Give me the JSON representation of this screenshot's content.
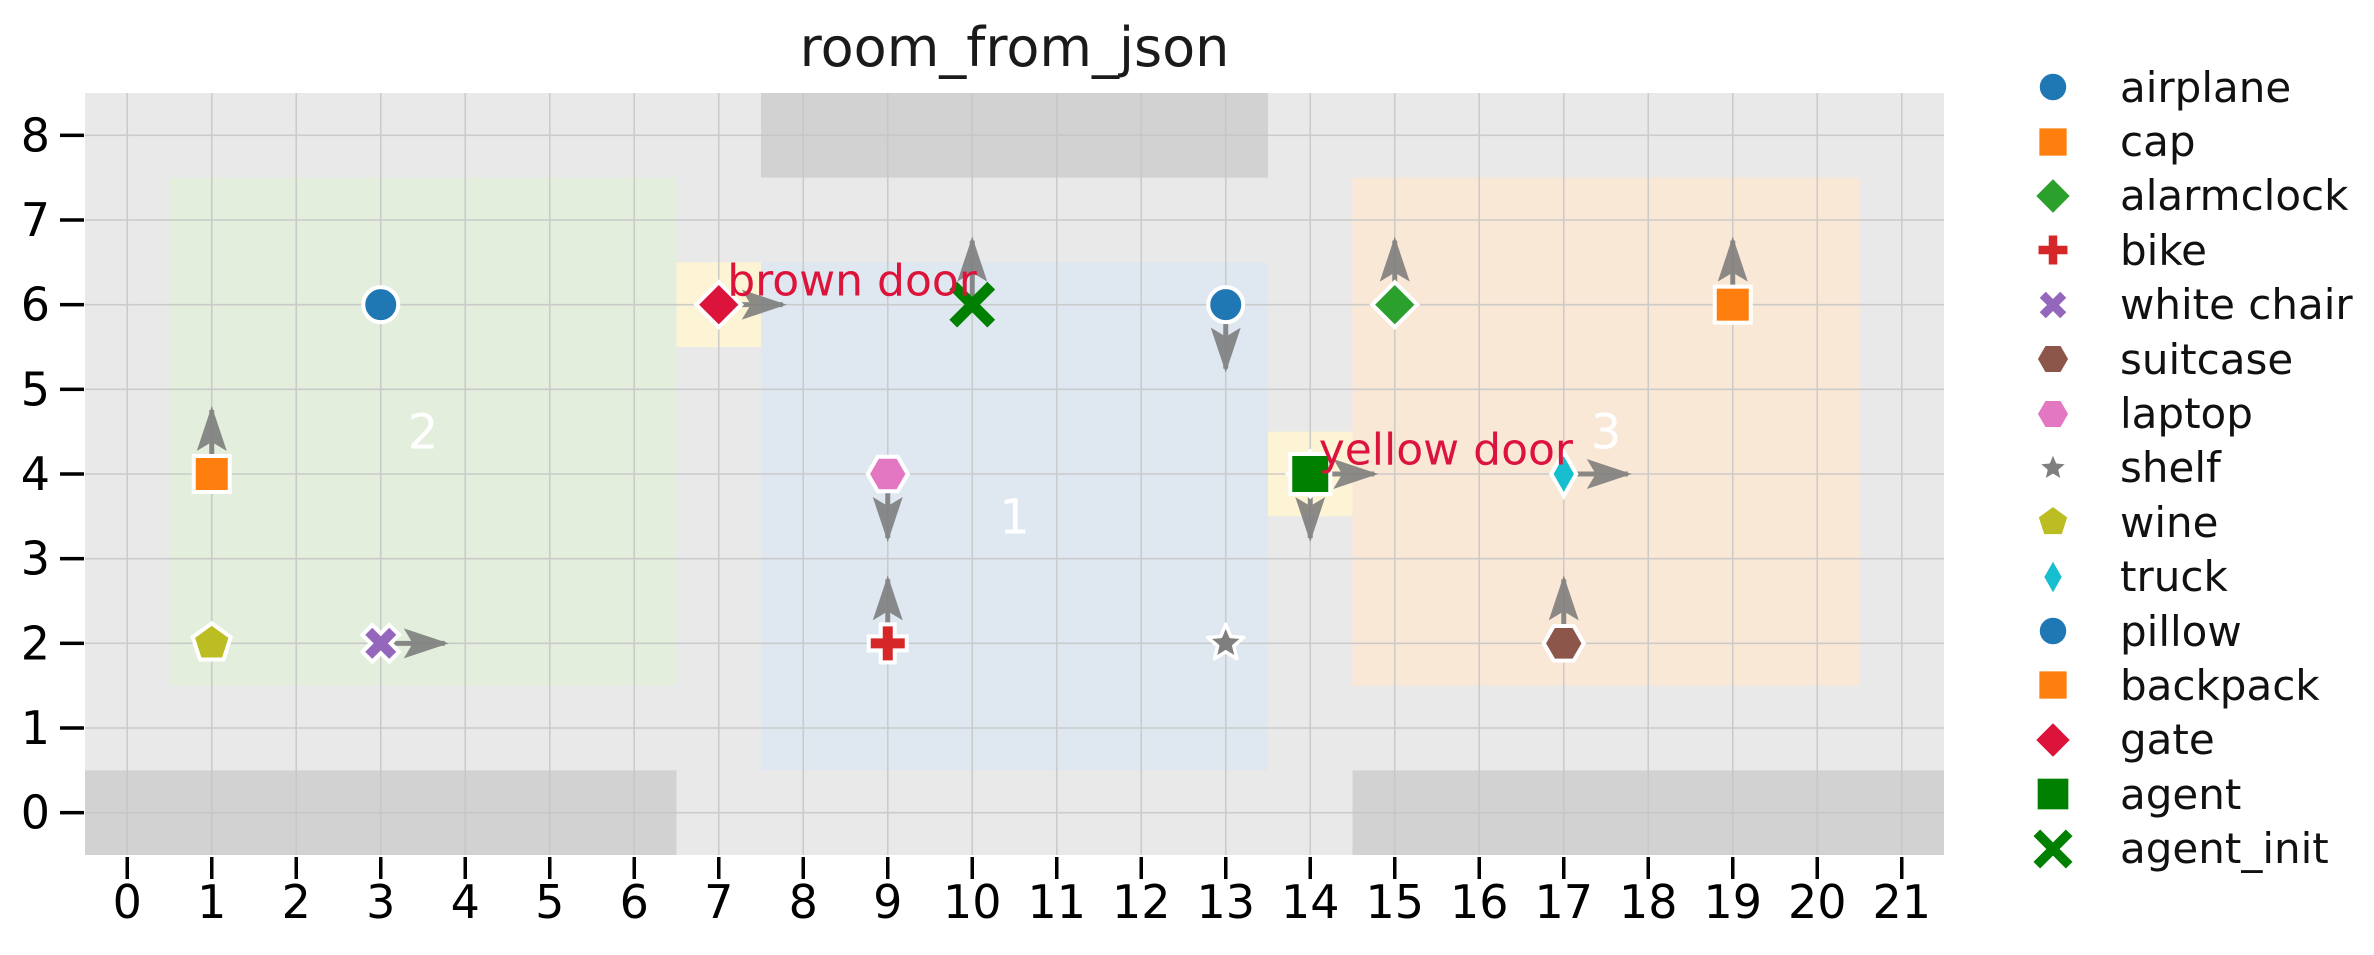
{
  "chart_data": {
    "type": "scatter",
    "title": "room_from_json",
    "xlabel": "",
    "ylabel": "",
    "xlim": [
      -0.5,
      21.5
    ],
    "ylim": [
      -0.5,
      8.5
    ],
    "xticks": [
      0,
      1,
      2,
      3,
      4,
      5,
      6,
      7,
      8,
      9,
      10,
      11,
      12,
      13,
      14,
      15,
      16,
      17,
      18,
      19,
      20,
      21
    ],
    "yticks": [
      0,
      1,
      2,
      3,
      4,
      5,
      6,
      7,
      8
    ],
    "grid": true,
    "legend_position": "right-outside",
    "colors": {
      "plot_bg": "#e9e9e9",
      "grid": "#c6c6c6",
      "wall": "#d2d2d2",
      "door_highlight": "#fdf4d6",
      "arrow": "#787878",
      "room_label": "#ffffff",
      "door_label": "#dc143c",
      "tick_text": "#000000",
      "title_text": "#1a1a1a",
      "legend_text": "#111111"
    },
    "rooms": [
      {
        "id": "1",
        "x0": 7.5,
        "y0": 0.5,
        "x1": 13.5,
        "y1": 6.5,
        "fill": "#dfe8f0",
        "label": "1",
        "label_x": 10.5,
        "label_y": 3.5
      },
      {
        "id": "2",
        "x0": 0.5,
        "y0": 1.5,
        "x1": 6.5,
        "y1": 7.5,
        "fill": "#e3eedd",
        "label": "2",
        "label_x": 3.5,
        "label_y": 4.5
      },
      {
        "id": "3",
        "x0": 14.5,
        "y0": 1.5,
        "x1": 20.5,
        "y1": 7.5,
        "fill": "#fae8d7",
        "label": "3",
        "label_x": 17.5,
        "label_y": 4.5
      }
    ],
    "walls": [
      {
        "x0": 7.5,
        "y0": 7.5,
        "x1": 13.5,
        "y1": 8.5
      },
      {
        "x0": -0.5,
        "y0": -0.5,
        "x1": 6.5,
        "y1": 0.5
      },
      {
        "x0": 14.5,
        "y0": -0.5,
        "x1": 21.5,
        "y1": 0.5
      }
    ],
    "doors": [
      {
        "label": "brown door",
        "x": 7,
        "y": 6,
        "label_x": 7.1,
        "label_y": 6.3
      },
      {
        "label": "yellow door",
        "x": 14,
        "y": 4,
        "label_x": 14.1,
        "label_y": 4.3
      }
    ],
    "objects": [
      {
        "name": "airplane",
        "marker": "circle",
        "color": "#1f77b4",
        "x": 3,
        "y": 6,
        "dir": null
      },
      {
        "name": "cap",
        "marker": "square",
        "color": "#ff7f0e",
        "x": 1,
        "y": 4,
        "dir": "up"
      },
      {
        "name": "alarmclock",
        "marker": "diamond",
        "color": "#2ca02c",
        "x": 15,
        "y": 6,
        "dir": "up"
      },
      {
        "name": "bike",
        "marker": "plus",
        "color": "#d62728",
        "x": 9,
        "y": 2,
        "dir": "up"
      },
      {
        "name": "white chair",
        "marker": "x",
        "color": "#9467bd",
        "x": 3,
        "y": 2,
        "dir": "right"
      },
      {
        "name": "suitcase",
        "marker": "hexagon",
        "color": "#8c564b",
        "x": 17,
        "y": 2,
        "dir": "up"
      },
      {
        "name": "laptop",
        "marker": "hexagon",
        "color": "#e377c2",
        "x": 9,
        "y": 4,
        "dir": "down"
      },
      {
        "name": "shelf",
        "marker": "star",
        "color": "#7f7f7f",
        "x": 13,
        "y": 2,
        "dir": null
      },
      {
        "name": "wine",
        "marker": "pentagon",
        "color": "#bcbd22",
        "x": 1,
        "y": 2,
        "dir": null
      },
      {
        "name": "truck",
        "marker": "thin-diamond",
        "color": "#17becf",
        "x": 17,
        "y": 4,
        "dir": "right"
      },
      {
        "name": "pillow",
        "marker": "circle",
        "color": "#1f77b4",
        "x": 13,
        "y": 6,
        "dir": "down"
      },
      {
        "name": "backpack",
        "marker": "square",
        "color": "#ff7f0e",
        "x": 19,
        "y": 6,
        "dir": "up"
      },
      {
        "name": "gate",
        "marker": "diamond",
        "color": "#dc143c",
        "x": 7,
        "y": 6,
        "dir": "right"
      },
      {
        "name": "gate",
        "marker": "diamond",
        "color": "#dc143c",
        "x": 14,
        "y": 4,
        "dir": "down"
      },
      {
        "name": "agent",
        "marker": "square-large",
        "color": "#008000",
        "x": 14,
        "y": 4,
        "dir": "right"
      },
      {
        "name": "agent_init",
        "marker": "x-stroke",
        "color": "#008000",
        "x": 10,
        "y": 6,
        "dir": "up"
      }
    ],
    "legend": [
      {
        "label": "airplane",
        "marker": "circle",
        "color": "#1f77b4"
      },
      {
        "label": "cap",
        "marker": "square",
        "color": "#ff7f0e"
      },
      {
        "label": "alarmclock",
        "marker": "diamond",
        "color": "#2ca02c"
      },
      {
        "label": "bike",
        "marker": "plus",
        "color": "#d62728"
      },
      {
        "label": "white chair",
        "marker": "x",
        "color": "#9467bd"
      },
      {
        "label": "suitcase",
        "marker": "hexagon",
        "color": "#8c564b"
      },
      {
        "label": "laptop",
        "marker": "hexagon",
        "color": "#e377c2"
      },
      {
        "label": "shelf",
        "marker": "star",
        "color": "#7f7f7f"
      },
      {
        "label": "wine",
        "marker": "pentagon",
        "color": "#bcbd22"
      },
      {
        "label": "truck",
        "marker": "thin-diamond",
        "color": "#17becf"
      },
      {
        "label": "pillow",
        "marker": "circle",
        "color": "#1f77b4"
      },
      {
        "label": "backpack",
        "marker": "square",
        "color": "#ff7f0e"
      },
      {
        "label": "gate",
        "marker": "diamond",
        "color": "#dc143c"
      },
      {
        "label": "agent",
        "marker": "square-large",
        "color": "#008000"
      },
      {
        "label": "agent_init",
        "marker": "x-stroke",
        "color": "#008000"
      }
    ]
  }
}
